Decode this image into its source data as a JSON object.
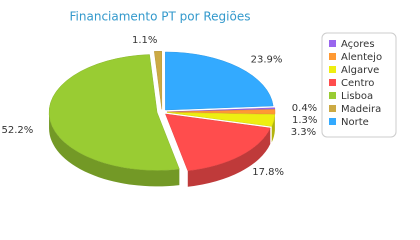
{
  "chart_data": {
    "type": "pie3d",
    "title": "Financiamento PT por Regiões",
    "categories": [
      "Açores",
      "Alentejo",
      "Algarve",
      "Centro",
      "Lisboa",
      "Madeira",
      "Norte"
    ],
    "values": [
      0.4,
      1.3,
      3.3,
      17.8,
      52.2,
      1.1,
      23.9
    ],
    "value_labels": [
      "0.4%",
      "1.3%",
      "3.3%",
      "17.8%",
      "52.2%",
      "1.1%",
      "23.9%"
    ],
    "colors": [
      "#9966ee",
      "#ff9933",
      "#eeee11",
      "#ff4d4d",
      "#99cc33",
      "#ccaa44",
      "#33aaff"
    ],
    "legend": "right"
  }
}
